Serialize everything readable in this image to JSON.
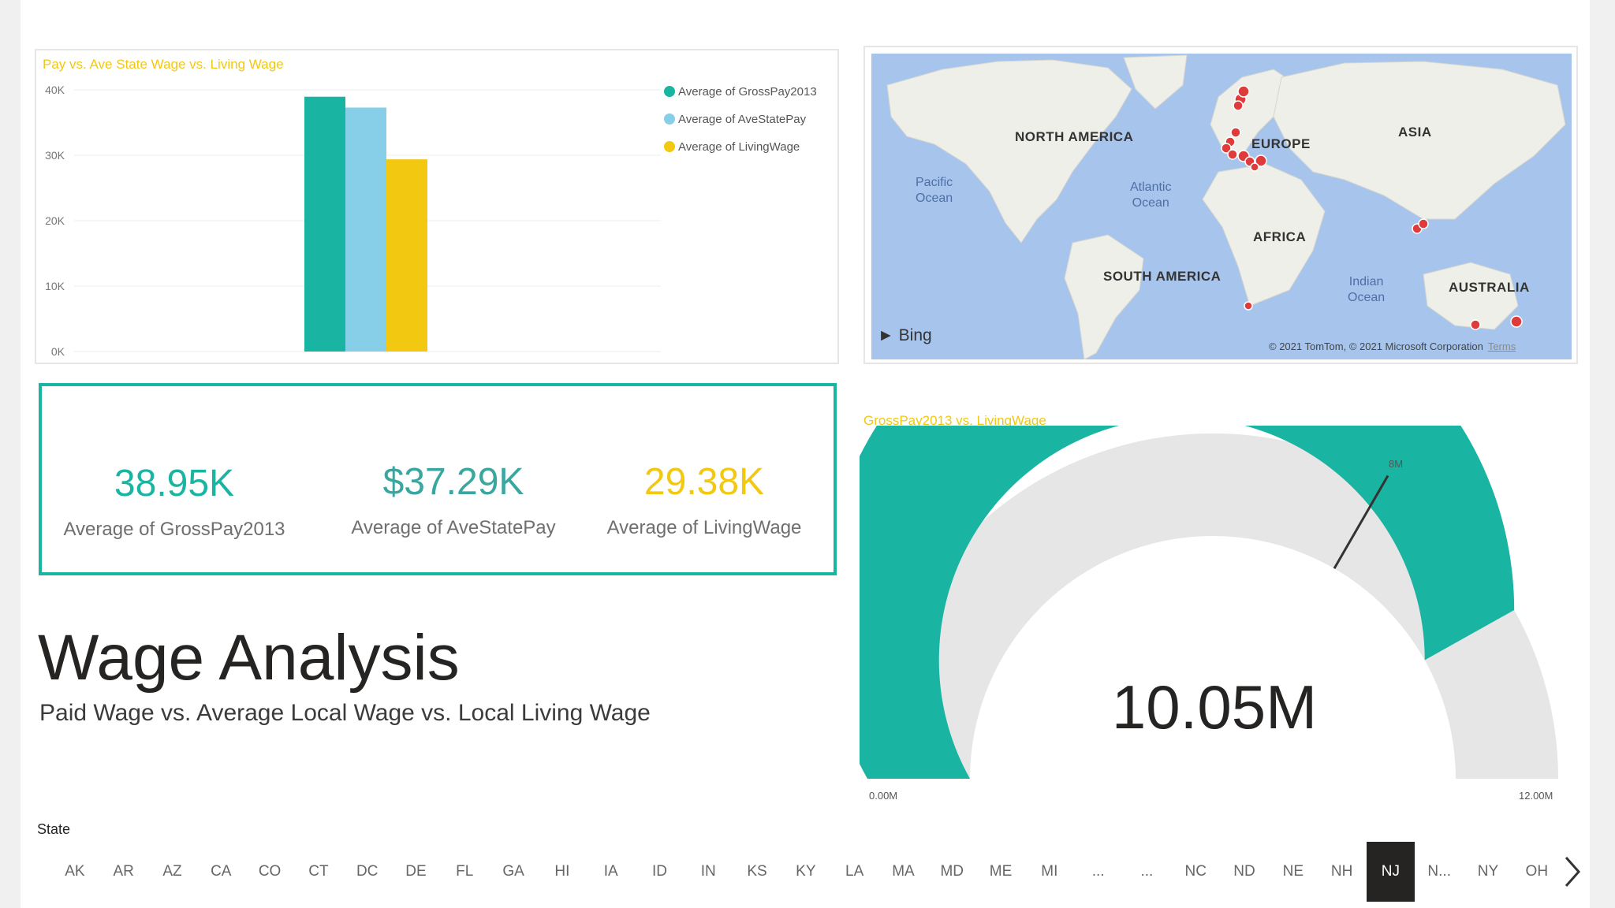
{
  "bar_chart": {
    "title": "Pay vs. Ave State Wage vs. Living Wage",
    "legend": [
      {
        "label": "Average of GrossPay2013",
        "color": "#1ab4a3"
      },
      {
        "label": "Average of AveStatePay",
        "color": "#87cfe9"
      },
      {
        "label": "Average of LivingWage",
        "color": "#f2c811"
      }
    ]
  },
  "chart_data": {
    "type": "bar",
    "title": "Pay vs. Ave State Wage vs. Living Wage",
    "categories": [
      ""
    ],
    "series": [
      {
        "name": "Average of GrossPay2013",
        "values": [
          38950
        ],
        "color": "#1ab4a3"
      },
      {
        "name": "Average of AveStatePay",
        "values": [
          37290
        ],
        "color": "#87cfe9"
      },
      {
        "name": "Average of LivingWage",
        "values": [
          29380
        ],
        "color": "#f2c811"
      }
    ],
    "ylim": [
      0,
      40000
    ],
    "yticks": [
      "0K",
      "10K",
      "20K",
      "30K",
      "40K"
    ],
    "grid": true,
    "legend": "top-right"
  },
  "map": {
    "continents": [
      "NORTH AMERICA",
      "EUROPE",
      "ASIA",
      "AFRICA",
      "SOUTH AMERICA",
      "AUSTRALIA"
    ],
    "oceans": [
      "Pacific\nOcean",
      "Atlantic\nOcean",
      "Indian\nOcean"
    ],
    "bing_label": "Bing",
    "copyright": "© 2021 TomTom, © 2021 Microsoft Corporation",
    "terms": "Terms"
  },
  "cards": [
    {
      "value": "38.95K",
      "label": "Average of GrossPay2013",
      "color": "#1ab4a3"
    },
    {
      "value": "$37.29K",
      "label": "Average of AveStatePay",
      "color": "#3aa6a0"
    },
    {
      "value": "29.38K",
      "label": "Average of LivingWage",
      "color": "#f2c811"
    }
  ],
  "report": {
    "title": "Wage Analysis",
    "subtitle": "Paid Wage vs. Average Local Wage vs. Local Living Wage"
  },
  "gauge": {
    "title": "GrossPay2013 vs. LivingWage",
    "value_label": "10.05M",
    "min_label": "0.00M",
    "max_label": "12.00M",
    "target_label": "8M",
    "value": 10.05,
    "min": 0,
    "max": 12,
    "target": 8,
    "fill_color": "#1ab4a3",
    "track_color": "#e6e6e6"
  },
  "slicer": {
    "label": "State",
    "items": [
      "AK",
      "AR",
      "AZ",
      "CA",
      "CO",
      "CT",
      "DC",
      "DE",
      "FL",
      "GA",
      "HI",
      "IA",
      "ID",
      "IN",
      "KS",
      "KY",
      "LA",
      "MA",
      "MD",
      "ME",
      "MI",
      "...",
      "...",
      "NC",
      "ND",
      "NE",
      "NH",
      "NJ",
      "N...",
      "NY",
      "OH"
    ],
    "selected": "NJ"
  }
}
